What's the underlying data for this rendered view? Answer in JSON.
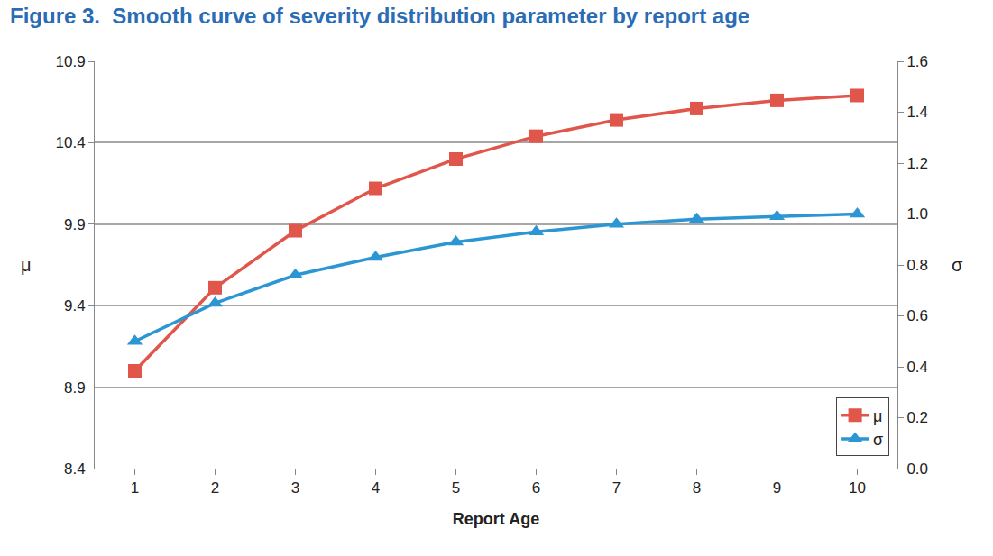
{
  "chart_data": {
    "type": "line",
    "title": "Figure 3.  Smooth curve of severity distribution parameter by report age",
    "x_label": "Report Age",
    "y_label": "μ",
    "y2_label": "σ",
    "categories": [
      "1",
      "2",
      "3",
      "4",
      "5",
      "6",
      "7",
      "8",
      "9",
      "10"
    ],
    "series": [
      {
        "name": "μ",
        "color": "#e0564b",
        "marker": "square",
        "axis": "y",
        "values": [
          9.0,
          9.51,
          9.86,
          10.12,
          10.3,
          10.44,
          10.54,
          10.61,
          10.66,
          10.69
        ]
      },
      {
        "name": "σ",
        "color": "#2b96d3",
        "marker": "triangle",
        "axis": "y2",
        "values": [
          0.5,
          0.65,
          0.76,
          0.83,
          0.89,
          0.93,
          0.96,
          0.98,
          0.99,
          1.0
        ]
      }
    ],
    "ylim": [
      8.4,
      10.9
    ],
    "yticks": [
      8.4,
      8.9,
      9.4,
      9.9,
      10.4,
      10.9
    ],
    "y2lim": [
      0,
      1.6
    ],
    "y2ticks": [
      {
        "value": 0,
        "label": "0.0"
      },
      0.2,
      0.4,
      0.6,
      0.8,
      {
        "value": 1,
        "label": "1.0"
      },
      1.2,
      1.4,
      1.6
    ],
    "grid": true,
    "legend": "lower right"
  }
}
